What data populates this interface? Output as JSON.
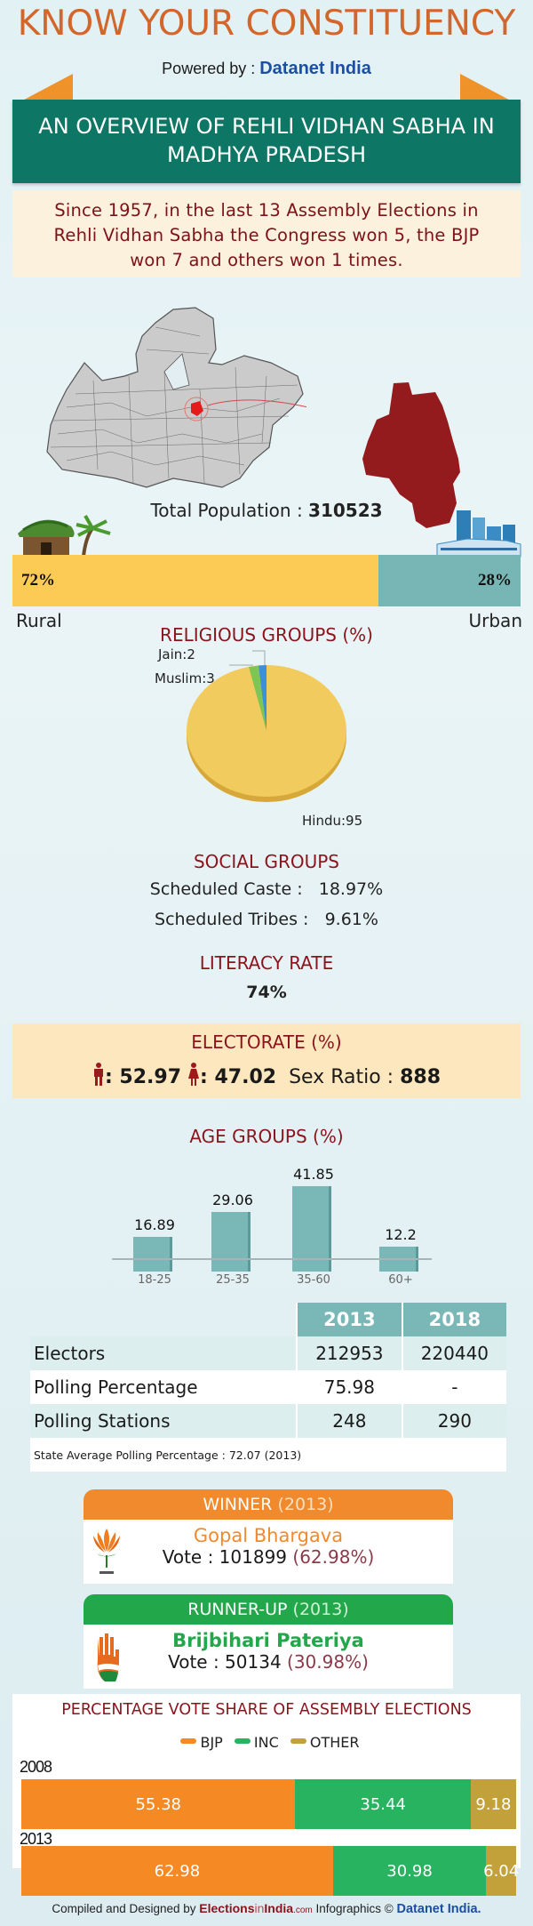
{
  "header": {
    "title": "KNOW YOUR CONSTITUENCY",
    "powered_by_label": "Powered by : ",
    "powered_by_brand": "Datanet India",
    "banner_line1": "AN OVERVIEW OF REHLI VIDHAN SABHA IN",
    "banner_line2": "MADHYA PRADESH"
  },
  "summary": {
    "line1": "Since 1957, in the last 13 Assembly Elections in",
    "line2": "Rehli Vidhan Sabha the Congress won 5, the BJP",
    "line3": "won 7 and others won 1 times."
  },
  "population": {
    "label": "Total Population : ",
    "value": "310523",
    "rural_pct": "72%",
    "urban_pct": "28%",
    "rural_label": "Rural",
    "urban_label": "Urban",
    "rural_color": "#fccb55",
    "urban_color": "#78b6b6"
  },
  "religious": {
    "title": "RELIGIOUS GROUPS",
    "title_unit": "(%)",
    "labels": {
      "jain": "Jain:2",
      "muslim": "Muslim:3",
      "hindu": "Hindu:95"
    }
  },
  "social": {
    "title": "SOCIAL GROUPS",
    "sc_label": "Scheduled Caste :",
    "sc_value": "18.97%",
    "st_label": "Scheduled Tribes :",
    "st_value": "9.61%"
  },
  "literacy": {
    "title": "LITERACY RATE",
    "value": "74%"
  },
  "electorate": {
    "title": "ELECTORATE",
    "title_unit": "(%)",
    "male": ": 52.97",
    "female": ": 47.02",
    "sex_ratio_label": "Sex Ratio : ",
    "sex_ratio_value": "888"
  },
  "age_groups": {
    "title": "AGE GROUPS",
    "title_unit": "(%)"
  },
  "stats_table": {
    "headers": [
      "",
      "2013",
      "2018"
    ],
    "rows": [
      {
        "label": "Electors",
        "v2013": "212953",
        "v2018": "220440"
      },
      {
        "label": "Polling Percentage",
        "v2013": "75.98",
        "v2018": "-"
      },
      {
        "label": "Polling Stations",
        "v2013": "248",
        "v2018": "290"
      }
    ],
    "note": "State Average Polling Percentage : 72.07 (2013)"
  },
  "winner": {
    "heading": "WINNER",
    "year": "(2013)",
    "name": "Gopal Bhargava",
    "vote_label": "Vote : 101899 ",
    "vote_pct": "(62.98%)",
    "party_icon": "bjp-lotus-icon",
    "color": "#f08a2c"
  },
  "runner_up": {
    "heading": "RUNNER-UP",
    "year": "(2013)",
    "name": "Brijbihari Pateriya",
    "vote_label": "Vote : 50134 ",
    "vote_pct": "(30.98%)",
    "party_icon": "inc-hand-icon",
    "color": "#22a84a"
  },
  "vote_share": {
    "title": "PERCENTAGE VOTE SHARE OF ASSEMBLY ELECTIONS",
    "legend": [
      "BJP",
      "INC",
      "OTHER"
    ],
    "colors": {
      "BJP": "#f58a24",
      "INC": "#27b35f",
      "OTHER": "#c3a13a"
    },
    "years": [
      {
        "year": "2008",
        "bjp": "55.38",
        "inc": "35.44",
        "other": "9.18"
      },
      {
        "year": "2013",
        "bjp": "62.98",
        "inc": "30.98",
        "other": "6.04"
      }
    ]
  },
  "footer": {
    "compiled": "Compiled and Designed by ",
    "eii_a": "Elections",
    "eii_b": "in",
    "eii_c": "India",
    "eii_d": ".com",
    "infographics": " Infographics © ",
    "dn": "Datanet India."
  },
  "chart_data": [
    {
      "type": "bar",
      "title": "Rural vs Urban Population",
      "categories": [
        "Rural",
        "Urban"
      ],
      "values": [
        72,
        28
      ],
      "ylabel": "%"
    },
    {
      "type": "pie",
      "title": "RELIGIOUS GROUPS (%)",
      "categories": [
        "Hindu",
        "Muslim",
        "Jain"
      ],
      "values": [
        95,
        3,
        2
      ],
      "colors": [
        "#f2cb5e",
        "#7ec654",
        "#3c8fd9"
      ]
    },
    {
      "type": "bar",
      "title": "AGE GROUPS (%)",
      "categories": [
        "18-25",
        "25-35",
        "35-60",
        "60+"
      ],
      "values": [
        16.89,
        29.06,
        41.85,
        12.2
      ],
      "xlabel": "",
      "ylabel": "",
      "grid": false
    },
    {
      "type": "bar",
      "title": "PERCENTAGE VOTE SHARE OF ASSEMBLY ELECTIONS",
      "stacked": true,
      "orientation": "horizontal",
      "categories": [
        "2008",
        "2013"
      ],
      "series": [
        {
          "name": "BJP",
          "values": [
            55.38,
            62.98
          ]
        },
        {
          "name": "INC",
          "values": [
            35.44,
            30.98
          ]
        },
        {
          "name": "OTHER",
          "values": [
            9.18,
            6.04
          ]
        }
      ],
      "legend_position": "top"
    }
  ]
}
